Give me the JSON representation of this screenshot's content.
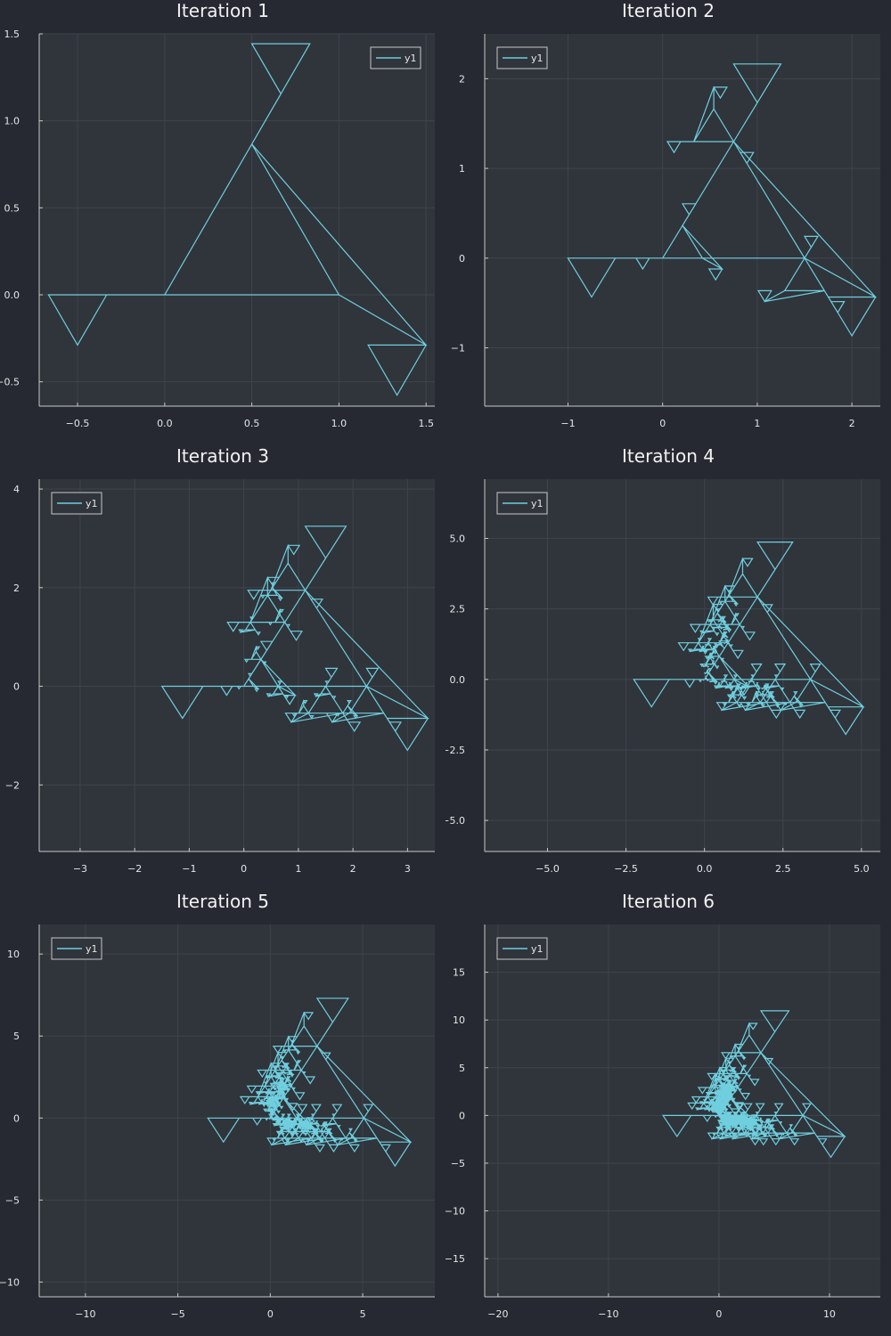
{
  "theme": {
    "page_bg": "#262932",
    "plot_bg": "#30343b",
    "axis_color": "#c8c8c8",
    "grid_color": "#3f444c",
    "line_color": "#6fcfdf"
  },
  "chart_data": [
    {
      "type": "line",
      "title": "Iteration 1",
      "level": 1,
      "xlim": [
        -0.72,
        1.55
      ],
      "ylim": [
        -0.64,
        1.5
      ],
      "xticks": [
        -0.5,
        0,
        0.5,
        1,
        1.5
      ],
      "xtick_labels": [
        "−0.5",
        "0.0",
        "0.5",
        "1.0",
        "1.5"
      ],
      "yticks": [
        -0.5,
        0,
        0.5,
        1,
        1.5
      ],
      "ytick_labels": [
        "−0.5",
        "0.0",
        "0.5",
        "1.0",
        "1.5"
      ],
      "series": [
        {
          "name": "y1"
        }
      ],
      "legend": "top-right",
      "grid": true
    },
    {
      "type": "line",
      "title": "Iteration 2",
      "level": 2,
      "xlim": [
        -1.88,
        2.3
      ],
      "ylim": [
        -1.65,
        2.5
      ],
      "xticks": [
        -1,
        0,
        1,
        2
      ],
      "xtick_labels": [
        "−1",
        "0",
        "1",
        "2"
      ],
      "yticks": [
        -1,
        0,
        1,
        2
      ],
      "ytick_labels": [
        "−1",
        "0",
        "1",
        "2"
      ],
      "series": [
        {
          "name": "y1"
        }
      ],
      "legend": "top-left",
      "grid": true
    },
    {
      "type": "line",
      "title": "Iteration 3",
      "level": 3,
      "xlim": [
        -3.75,
        3.5
      ],
      "ylim": [
        -3.35,
        4.2
      ],
      "xticks": [
        -3,
        -2,
        -1,
        0,
        1,
        2,
        3
      ],
      "xtick_labels": [
        "−3",
        "−2",
        "−1",
        "0",
        "1",
        "2",
        "3"
      ],
      "yticks": [
        -2,
        0,
        2,
        4
      ],
      "ytick_labels": [
        "−2",
        "0",
        "2",
        "4"
      ],
      "series": [
        {
          "name": "y1"
        }
      ],
      "legend": "top-left",
      "grid": true
    },
    {
      "type": "line",
      "title": "Iteration 4",
      "level": 4,
      "xlim": [
        -7.0,
        5.6
      ],
      "ylim": [
        -6.1,
        7.1
      ],
      "xticks": [
        -5,
        -2.5,
        0,
        2.5,
        5
      ],
      "xtick_labels": [
        "−5.0",
        "−2.5",
        "0.0",
        "2.5",
        "5.0"
      ],
      "yticks": [
        -5,
        -2.5,
        0,
        2.5,
        5
      ],
      "ytick_labels": [
        "−5.0",
        "−2.5",
        "0.0",
        "2.5",
        "5.0"
      ],
      "series": [
        {
          "name": "y1"
        }
      ],
      "legend": "top-left",
      "grid": true
    },
    {
      "type": "line",
      "title": "Iteration 5",
      "level": 5,
      "xlim": [
        -12.5,
        8.9
      ],
      "ylim": [
        -10.9,
        11.8
      ],
      "xticks": [
        -10,
        -5,
        0,
        5
      ],
      "xtick_labels": [
        "−10",
        "−5",
        "0",
        "5"
      ],
      "yticks": [
        -10,
        -5,
        0,
        5,
        10
      ],
      "ytick_labels": [
        "−10",
        "−5",
        "0",
        "5",
        "10"
      ],
      "series": [
        {
          "name": "y1"
        }
      ],
      "legend": "top-left",
      "grid": true
    },
    {
      "type": "line",
      "title": "Iteration 6",
      "level": 6,
      "xlim": [
        -21.2,
        14.6
      ],
      "ylim": [
        -19.0,
        20.0
      ],
      "xticks": [
        -20,
        -10,
        0,
        10
      ],
      "xtick_labels": [
        "−20",
        "−10",
        "0",
        "10"
      ],
      "yticks": [
        -15,
        -10,
        -5,
        0,
        5,
        10,
        15
      ],
      "ytick_labels": [
        "−15",
        "−10",
        "−5",
        "0",
        "5",
        "10",
        "15"
      ],
      "series": [
        {
          "name": "y1"
        }
      ],
      "legend": "top-left",
      "grid": true
    }
  ]
}
